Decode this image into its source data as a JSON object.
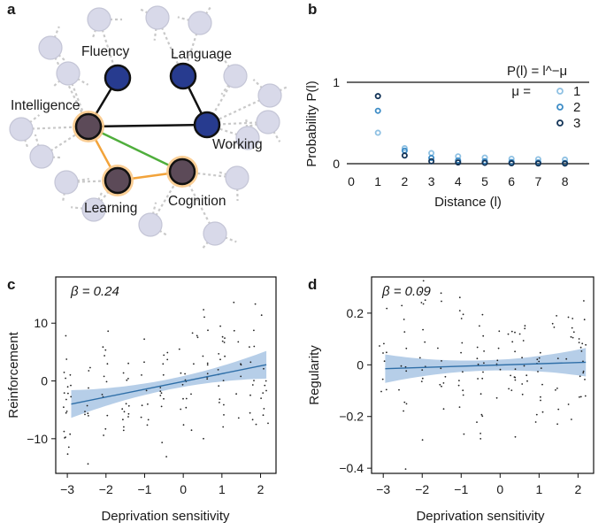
{
  "panels": {
    "a": "a",
    "b": "b",
    "c": "c",
    "d": "d"
  },
  "network": {
    "nodes": [
      {
        "label": "Fluency"
      },
      {
        "label": "Language"
      },
      {
        "label": "Intelligence"
      },
      {
        "label": "Working"
      },
      {
        "label": "Learning"
      },
      {
        "label": "Cognition"
      }
    ],
    "edges": [
      {
        "from": "Fluency",
        "to": "Intelligence",
        "kind": "black"
      },
      {
        "from": "Language",
        "to": "Working",
        "kind": "black"
      },
      {
        "from": "Intelligence",
        "to": "Working",
        "kind": "black"
      },
      {
        "from": "Intelligence",
        "to": "Cognition",
        "kind": "green"
      },
      {
        "from": "Intelligence",
        "to": "Learning",
        "kind": "orange"
      },
      {
        "from": "Learning",
        "to": "Cognition",
        "kind": "orange"
      }
    ],
    "colors": {
      "core_node": "#273b8f",
      "walk_node": "#5c4a58",
      "background_node": "#d8d9e9",
      "green_edge": "#4fae3c",
      "orange_edge": "#f2a33a"
    }
  },
  "chart_data": [
    {
      "type": "scatter",
      "panel": "b",
      "formula": "P(l) = l^−μ",
      "xlabel": "Distance (l)",
      "ylabel": "Probability P(l)",
      "xlim": [
        0,
        9
      ],
      "ylim": [
        0,
        1
      ],
      "xticks": [
        "0",
        "1",
        "2",
        "3",
        "4",
        "5",
        "6",
        "7",
        "8"
      ],
      "yticks": [
        "0",
        "1"
      ],
      "legend_title": "μ =",
      "legend_position": "top-right",
      "series": [
        {
          "name": "1",
          "color": "#8fc1e3",
          "x": [
            1,
            2,
            3,
            4,
            5,
            6,
            7,
            8
          ],
          "y": [
            0.38,
            0.19,
            0.13,
            0.09,
            0.075,
            0.06,
            0.055,
            0.05
          ]
        },
        {
          "name": "2",
          "color": "#3d8cc6",
          "x": [
            1,
            2,
            3,
            4,
            5,
            6,
            7,
            8
          ],
          "y": [
            0.65,
            0.16,
            0.07,
            0.04,
            0.03,
            0.02,
            0.015,
            0.01
          ]
        },
        {
          "name": "3",
          "color": "#123357",
          "x": [
            1,
            2,
            3,
            4,
            5,
            6,
            7,
            8
          ],
          "y": [
            0.83,
            0.1,
            0.03,
            0.015,
            0.01,
            0.005,
            0.003,
            0.002
          ]
        }
      ]
    },
    {
      "type": "scatter",
      "panel": "c",
      "annotation": "β = 0.24",
      "xlabel": "Deprivation sensitivity",
      "ylabel": "Reinforcement",
      "xlim": [
        -3.3,
        2.4
      ],
      "ylim": [
        -16,
        18
      ],
      "xticks": [
        "−3",
        "−2",
        "−1",
        "0",
        "1",
        "2"
      ],
      "yticks": [
        "−10",
        "0",
        "10"
      ],
      "fit": {
        "x": [
          -2.9,
          2.15
        ],
        "y": [
          -4.0,
          2.8
        ]
      },
      "ci_halfwidth": {
        "at_ends": 2.4,
        "at_center": 0.9
      },
      "n_points": 150,
      "points_description": "individual participants"
    },
    {
      "type": "scatter",
      "panel": "d",
      "annotation": "β = 0.09",
      "xlabel": "Deprivation sensitivity",
      "ylabel": "Regularity",
      "xlim": [
        -3.3,
        2.4
      ],
      "ylim": [
        -0.42,
        0.34
      ],
      "xticks": [
        "−3",
        "−2",
        "−1",
        "0",
        "1",
        "2"
      ],
      "yticks": [
        "−0.4",
        "−0.2",
        "0",
        "0.2"
      ],
      "fit": {
        "x": [
          -2.95,
          2.2
        ],
        "y": [
          -0.015,
          0.01
        ]
      },
      "ci_halfwidth": {
        "at_ends": 0.055,
        "at_center": 0.02
      },
      "n_points": 150,
      "points_description": "individual participants"
    }
  ],
  "colors": {
    "ci_band": "#a9c6e4",
    "fit_line": "#2f6fa8",
    "points": "#222222",
    "axis": "#1a1a1a"
  }
}
